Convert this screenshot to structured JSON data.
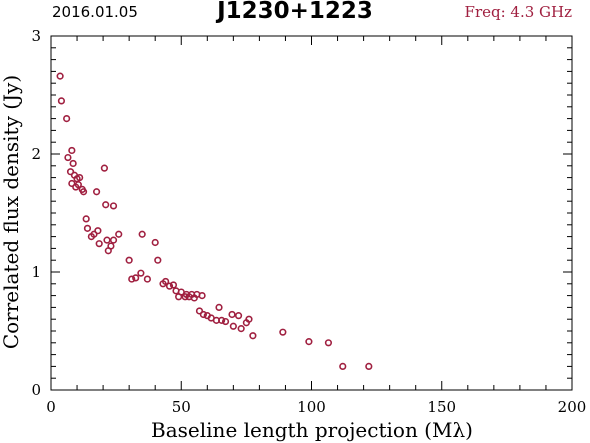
{
  "header": {
    "date": "2016.01.05",
    "source": "J1230+1223",
    "frequency": "Freq: 4.3 GHz"
  },
  "colors": {
    "marker": "#a02040",
    "axes": "#000000"
  },
  "chart_data": {
    "type": "scatter",
    "title": "J1230+1223",
    "xlabel": "Baseline length projection (Mλ)",
    "ylabel": "Correlated flux density (Jy)",
    "xlim": [
      0,
      200
    ],
    "ylim": [
      0,
      3
    ],
    "xticks": [
      0,
      50,
      100,
      150,
      200
    ],
    "yticks": [
      0,
      1,
      2,
      3
    ],
    "grid": false,
    "points": [
      [
        3.5,
        2.66
      ],
      [
        4,
        2.45
      ],
      [
        6,
        2.3
      ],
      [
        6.5,
        1.97
      ],
      [
        7.5,
        1.85
      ],
      [
        8,
        2.03
      ],
      [
        8,
        1.75
      ],
      [
        8.5,
        1.92
      ],
      [
        9,
        1.82
      ],
      [
        9.5,
        1.72
      ],
      [
        10,
        1.79
      ],
      [
        10.5,
        1.74
      ],
      [
        11,
        1.8
      ],
      [
        12,
        1.7
      ],
      [
        12.5,
        1.68
      ],
      [
        13.5,
        1.45
      ],
      [
        14,
        1.37
      ],
      [
        15.5,
        1.3
      ],
      [
        16.5,
        1.32
      ],
      [
        17.5,
        1.68
      ],
      [
        18,
        1.35
      ],
      [
        18.5,
        1.24
      ],
      [
        20.5,
        1.88
      ],
      [
        21,
        1.57
      ],
      [
        21.5,
        1.27
      ],
      [
        22,
        1.18
      ],
      [
        23,
        1.22
      ],
      [
        24,
        1.27
      ],
      [
        24,
        1.56
      ],
      [
        26,
        1.32
      ],
      [
        30,
        1.1
      ],
      [
        31,
        0.94
      ],
      [
        32.5,
        0.95
      ],
      [
        34.5,
        0.99
      ],
      [
        35,
        1.32
      ],
      [
        37,
        0.94
      ],
      [
        40,
        1.25
      ],
      [
        41,
        1.1
      ],
      [
        43,
        0.9
      ],
      [
        44,
        0.92
      ],
      [
        45.5,
        0.88
      ],
      [
        47,
        0.89
      ],
      [
        48,
        0.84
      ],
      [
        49,
        0.79
      ],
      [
        50,
        0.83
      ],
      [
        51.5,
        0.79
      ],
      [
        52,
        0.81
      ],
      [
        53,
        0.79
      ],
      [
        54,
        0.81
      ],
      [
        55,
        0.78
      ],
      [
        56,
        0.81
      ],
      [
        57,
        0.67
      ],
      [
        58,
        0.8
      ],
      [
        58.5,
        0.64
      ],
      [
        60,
        0.63
      ],
      [
        61.5,
        0.61
      ],
      [
        63.5,
        0.59
      ],
      [
        64.5,
        0.7
      ],
      [
        65.5,
        0.59
      ],
      [
        67,
        0.58
      ],
      [
        69.5,
        0.64
      ],
      [
        70,
        0.54
      ],
      [
        72,
        0.63
      ],
      [
        73,
        0.52
      ],
      [
        75,
        0.57
      ],
      [
        76,
        0.6
      ],
      [
        77.5,
        0.46
      ],
      [
        89,
        0.49
      ],
      [
        99,
        0.41
      ],
      [
        106.5,
        0.4
      ],
      [
        112,
        0.2
      ],
      [
        122,
        0.2
      ]
    ]
  }
}
